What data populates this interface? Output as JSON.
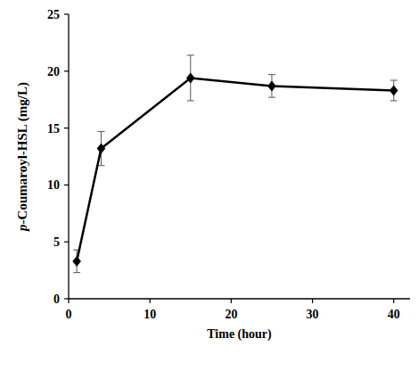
{
  "chart_data": {
    "type": "line",
    "x_label": "Time (hour)",
    "y_label": "p-Coumaroyl-HSL (mg/L)",
    "x": [
      1,
      4,
      15,
      25,
      40
    ],
    "values": [
      3.3,
      13.2,
      19.4,
      18.7,
      18.3
    ],
    "errors": [
      1.0,
      1.5,
      2.0,
      1.0,
      0.9
    ],
    "color": "#000000",
    "marker": "diamond",
    "line_style": "solid",
    "grid": false,
    "xlim": [
      0,
      42
    ],
    "xticks": [
      0,
      10,
      20,
      30,
      40
    ],
    "ylim": [
      0,
      25
    ],
    "yticks": [
      0,
      5,
      10,
      15,
      20,
      25
    ]
  }
}
